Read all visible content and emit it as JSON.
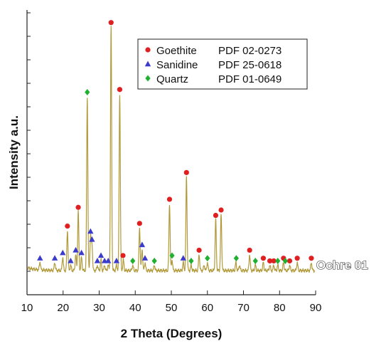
{
  "chart_data": {
    "type": "line",
    "xlabel": "2 Theta (Degrees)",
    "ylabel": "Intensity a.u.",
    "xlim": [
      10,
      90
    ],
    "xticks": [
      10,
      20,
      30,
      40,
      50,
      60,
      70,
      80,
      90
    ],
    "ylim": [
      0,
      100
    ],
    "grid": false,
    "legend_placement": "top-right",
    "baseline": 6,
    "line_color": "#b19a3a",
    "series": [
      {
        "name": "Ochre 01",
        "peaks": [
          {
            "x": 13.6,
            "y": 9
          },
          {
            "x": 17.7,
            "y": 9
          },
          {
            "x": 19.9,
            "y": 11
          },
          {
            "x": 21.2,
            "y": 21
          },
          {
            "x": 22.1,
            "y": 8
          },
          {
            "x": 23.5,
            "y": 12
          },
          {
            "x": 24.2,
            "y": 28
          },
          {
            "x": 25.1,
            "y": 11
          },
          {
            "x": 26.7,
            "y": 71
          },
          {
            "x": 27.6,
            "y": 19
          },
          {
            "x": 28.0,
            "y": 16
          },
          {
            "x": 29.5,
            "y": 8
          },
          {
            "x": 30.5,
            "y": 10
          },
          {
            "x": 31.5,
            "y": 8
          },
          {
            "x": 32.5,
            "y": 8
          },
          {
            "x": 33.3,
            "y": 97
          },
          {
            "x": 34.8,
            "y": 8
          },
          {
            "x": 35.7,
            "y": 72
          },
          {
            "x": 36.7,
            "y": 10
          },
          {
            "x": 39.3,
            "y": 8
          },
          {
            "x": 41.2,
            "y": 22
          },
          {
            "x": 41.9,
            "y": 14
          },
          {
            "x": 42.7,
            "y": 9
          },
          {
            "x": 45.3,
            "y": 8
          },
          {
            "x": 49.5,
            "y": 31
          },
          {
            "x": 50.2,
            "y": 10
          },
          {
            "x": 53.3,
            "y": 9
          },
          {
            "x": 54.2,
            "y": 41
          },
          {
            "x": 55.5,
            "y": 8
          },
          {
            "x": 57.7,
            "y": 12
          },
          {
            "x": 59.1,
            "y": 8
          },
          {
            "x": 60.0,
            "y": 9
          },
          {
            "x": 62.3,
            "y": 25
          },
          {
            "x": 63.8,
            "y": 27
          },
          {
            "x": 67.9,
            "y": 9
          },
          {
            "x": 68.9,
            "y": 8
          },
          {
            "x": 71.7,
            "y": 12
          },
          {
            "x": 73.3,
            "y": 8
          },
          {
            "x": 75.5,
            "y": 9
          },
          {
            "x": 77.3,
            "y": 8
          },
          {
            "x": 78.4,
            "y": 8
          },
          {
            "x": 79.5,
            "y": 8
          },
          {
            "x": 81.1,
            "y": 9
          },
          {
            "x": 82.8,
            "y": 8
          },
          {
            "x": 84.9,
            "y": 9
          },
          {
            "x": 88.8,
            "y": 9
          }
        ]
      }
    ],
    "markers": [
      {
        "phase": "Goethite",
        "x": 21.2,
        "y": 21
      },
      {
        "phase": "Goethite",
        "x": 24.2,
        "y": 28
      },
      {
        "phase": "Goethite",
        "x": 33.3,
        "y": 97
      },
      {
        "phase": "Goethite",
        "x": 35.7,
        "y": 72
      },
      {
        "phase": "Goethite",
        "x": 36.6,
        "y": 10
      },
      {
        "phase": "Goethite",
        "x": 41.2,
        "y": 22
      },
      {
        "phase": "Goethite",
        "x": 49.5,
        "y": 31
      },
      {
        "phase": "Goethite",
        "x": 54.2,
        "y": 41
      },
      {
        "phase": "Goethite",
        "x": 57.7,
        "y": 12
      },
      {
        "phase": "Goethite",
        "x": 62.3,
        "y": 25
      },
      {
        "phase": "Goethite",
        "x": 63.8,
        "y": 27
      },
      {
        "phase": "Goethite",
        "x": 71.7,
        "y": 12
      },
      {
        "phase": "Goethite",
        "x": 75.5,
        "y": 9
      },
      {
        "phase": "Goethite",
        "x": 77.3,
        "y": 8
      },
      {
        "phase": "Goethite",
        "x": 78.4,
        "y": 8
      },
      {
        "phase": "Goethite",
        "x": 81.1,
        "y": 9
      },
      {
        "phase": "Goethite",
        "x": 82.8,
        "y": 8
      },
      {
        "phase": "Goethite",
        "x": 84.9,
        "y": 9
      },
      {
        "phase": "Goethite",
        "x": 88.8,
        "y": 9
      },
      {
        "phase": "Sanidine",
        "x": 13.6,
        "y": 9
      },
      {
        "phase": "Sanidine",
        "x": 17.7,
        "y": 9
      },
      {
        "phase": "Sanidine",
        "x": 19.9,
        "y": 11
      },
      {
        "phase": "Sanidine",
        "x": 22.1,
        "y": 8
      },
      {
        "phase": "Sanidine",
        "x": 23.5,
        "y": 12
      },
      {
        "phase": "Sanidine",
        "x": 25.1,
        "y": 11
      },
      {
        "phase": "Sanidine",
        "x": 27.6,
        "y": 19
      },
      {
        "phase": "Sanidine",
        "x": 28.0,
        "y": 16
      },
      {
        "phase": "Sanidine",
        "x": 29.5,
        "y": 8
      },
      {
        "phase": "Sanidine",
        "x": 30.5,
        "y": 10
      },
      {
        "phase": "Sanidine",
        "x": 31.5,
        "y": 8
      },
      {
        "phase": "Sanidine",
        "x": 32.5,
        "y": 8
      },
      {
        "phase": "Sanidine",
        "x": 34.8,
        "y": 8
      },
      {
        "phase": "Sanidine",
        "x": 41.9,
        "y": 14
      },
      {
        "phase": "Sanidine",
        "x": 42.7,
        "y": 9
      },
      {
        "phase": "Sanidine",
        "x": 53.3,
        "y": 9
      },
      {
        "phase": "Quartz",
        "x": 26.7,
        "y": 71
      },
      {
        "phase": "Quartz",
        "x": 39.3,
        "y": 8
      },
      {
        "phase": "Quartz",
        "x": 45.3,
        "y": 8
      },
      {
        "phase": "Quartz",
        "x": 50.2,
        "y": 10
      },
      {
        "phase": "Quartz",
        "x": 55.5,
        "y": 8
      },
      {
        "phase": "Quartz",
        "x": 60.0,
        "y": 9
      },
      {
        "phase": "Quartz",
        "x": 68.0,
        "y": 9
      },
      {
        "phase": "Quartz",
        "x": 73.3,
        "y": 8
      },
      {
        "phase": "Quartz",
        "x": 79.5,
        "y": 8
      },
      {
        "phase": "Quartz",
        "x": 81.6,
        "y": 8
      }
    ],
    "legend": [
      {
        "name": "Goethite",
        "ref": "PDF 02-0273",
        "symbol": "circle",
        "color": "#e02020"
      },
      {
        "name": "Sanidine",
        "ref": "PDF 25-0618",
        "symbol": "triangle",
        "color": "#3a3acc"
      },
      {
        "name": "Quartz",
        "ref": "PDF 01-0649",
        "symbol": "diamond",
        "color": "#20b030"
      }
    ]
  }
}
